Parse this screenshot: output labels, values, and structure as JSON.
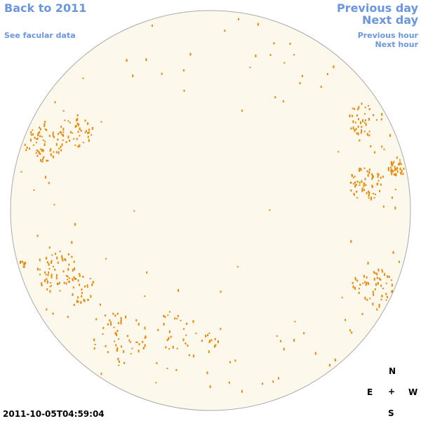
{
  "nav": {
    "back": "Back to 2011",
    "facular": "See facular data",
    "previous_day": "Previous day",
    "next_day": "Next day",
    "previous_hour": "Previous hour",
    "next_hour": "Next hour"
  },
  "timestamp": "2011-10-05T04:59:04",
  "compass": {
    "north": "N",
    "east": "E",
    "center": "+",
    "west": "W",
    "south": "S"
  }
}
